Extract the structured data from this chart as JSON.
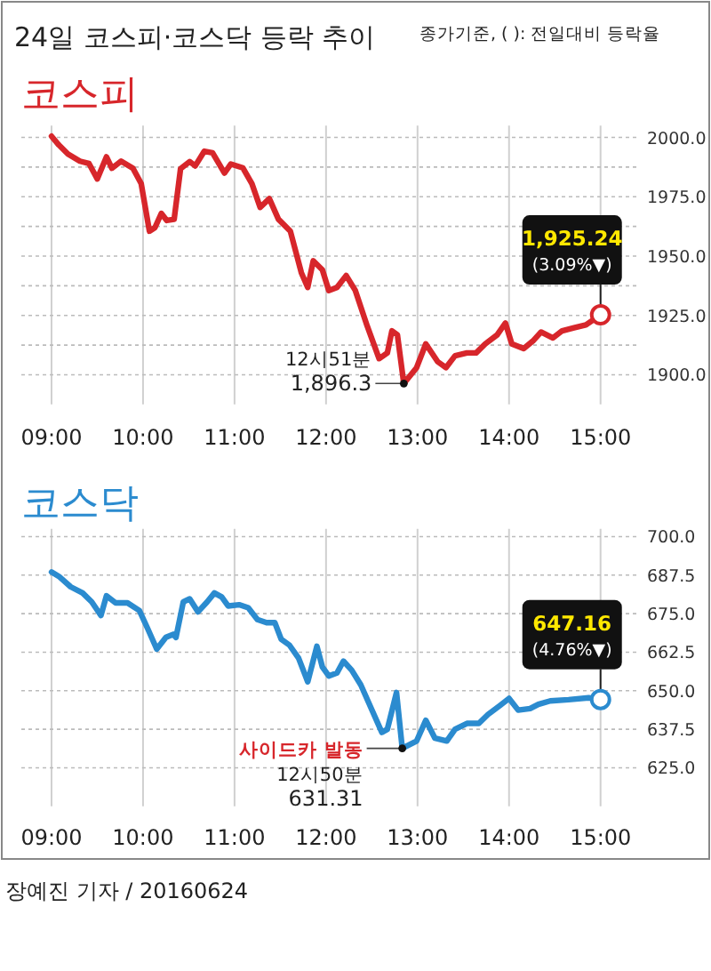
{
  "chart_data": [
    {
      "type": "line",
      "title": "24일 코스피·코스닥 등락 추이",
      "subtitle": "종가기준, ( ): 전일대비 등락율",
      "xlim": [
        8.67,
        15.43
      ],
      "xticks": [
        {
          "value": 9,
          "label": "09:00"
        },
        {
          "value": 10,
          "label": "10:00"
        },
        {
          "value": 11,
          "label": "11:00"
        },
        {
          "value": 12,
          "label": "12:00"
        },
        {
          "value": 13,
          "label": "13:00"
        },
        {
          "value": 14,
          "label": "14:00"
        },
        {
          "value": 15,
          "label": "15:00"
        }
      ],
      "ylim": [
        1887.5,
        2005
      ],
      "yticks": [
        {
          "value": 1900,
          "label": "1900.0"
        },
        {
          "value": 1912.5,
          "label": null
        },
        {
          "value": 1925,
          "label": "1925.0"
        },
        {
          "value": 1937.5,
          "label": null
        },
        {
          "value": 1950,
          "label": "1950.0"
        },
        {
          "value": 1962.5,
          "label": null
        },
        {
          "value": 1975,
          "label": "1975.0"
        },
        {
          "value": 1987.5,
          "label": null
        },
        {
          "value": 2000,
          "label": "2000.0"
        }
      ],
      "grid": true,
      "series": [
        {
          "name": "코스피",
          "color": "#d7262b",
          "x": [
            9.0,
            9.08,
            9.18,
            9.31,
            9.41,
            9.5,
            9.6,
            9.66,
            9.76,
            9.89,
            9.98,
            10.07,
            10.13,
            10.2,
            10.26,
            10.34,
            10.41,
            10.51,
            10.57,
            10.67,
            10.76,
            10.89,
            10.96,
            11.09,
            11.19,
            11.28,
            11.38,
            11.48,
            11.61,
            11.73,
            11.8,
            11.86,
            11.96,
            12.03,
            12.12,
            12.22,
            12.32,
            12.45,
            12.58,
            12.67,
            12.72,
            12.78,
            12.85,
            12.99,
            13.09,
            13.22,
            13.31,
            13.41,
            13.54,
            13.64,
            13.74,
            13.87,
            13.96,
            14.03,
            14.16,
            14.26,
            14.35,
            14.48,
            14.58,
            14.71,
            14.84,
            15.0
          ],
          "values": [
            2000.5,
            1996.8,
            1993,
            1990,
            1989,
            1982.5,
            1991.8,
            1987,
            1990,
            1987,
            1980.5,
            1960.5,
            1962,
            1968,
            1965,
            1965.5,
            1986.8,
            1989.8,
            1988,
            1994.2,
            1993.5,
            1985,
            1988.8,
            1987.2,
            1980.5,
            1970.5,
            1974.2,
            1965.5,
            1960.5,
            1943,
            1936.8,
            1948,
            1944.2,
            1935.5,
            1936.8,
            1941.8,
            1935.5,
            1920.5,
            1906.8,
            1909.2,
            1918.5,
            1916.8,
            1896.3,
            1903,
            1913,
            1905.5,
            1903,
            1908,
            1909.2,
            1909.2,
            1913,
            1916.8,
            1921.8,
            1913,
            1911,
            1914.2,
            1918,
            1915.5,
            1918.5,
            1919.8,
            1921,
            1925.24
          ]
        }
      ],
      "annotations": [
        {
          "text": "12시51분\n1,896.3",
          "x": 12.85,
          "y": 1896.3
        },
        {
          "text": "1,925.24\n(3.09%▼)",
          "x": 15.0,
          "y": 1925.24
        }
      ]
    },
    {
      "type": "line",
      "xlim": [
        8.67,
        15.43
      ],
      "xticks": [
        {
          "value": 9,
          "label": "09:00"
        },
        {
          "value": 10,
          "label": "10:00"
        },
        {
          "value": 11,
          "label": "11:00"
        },
        {
          "value": 12,
          "label": "12:00"
        },
        {
          "value": 13,
          "label": "13:00"
        },
        {
          "value": 14,
          "label": "14:00"
        },
        {
          "value": 15,
          "label": "15:00"
        }
      ],
      "ylim": [
        612.5,
        702.5
      ],
      "yticks": [
        {
          "value": 625,
          "label": "625.0"
        },
        {
          "value": 637.5,
          "label": "637.5"
        },
        {
          "value": 650,
          "label": "650.0"
        },
        {
          "value": 662.5,
          "label": "662.5"
        },
        {
          "value": 675,
          "label": "675.0"
        },
        {
          "value": 687.5,
          "label": "687.5"
        },
        {
          "value": 700,
          "label": "700.0"
        }
      ],
      "grid": true,
      "series": [
        {
          "name": "코스닥",
          "color": "#2b8bcf",
          "x": [
            9.0,
            9.08,
            9.21,
            9.34,
            9.44,
            9.54,
            9.6,
            9.7,
            9.83,
            9.96,
            10.05,
            10.15,
            10.25,
            10.33,
            10.36,
            10.44,
            10.51,
            10.6,
            10.7,
            10.78,
            10.86,
            10.93,
            11.05,
            11.15,
            11.25,
            11.35,
            11.44,
            11.51,
            11.6,
            11.7,
            11.8,
            11.9,
            11.96,
            12.03,
            12.12,
            12.19,
            12.28,
            12.38,
            12.48,
            12.61,
            12.67,
            12.77,
            12.833,
            12.99,
            13.09,
            13.19,
            13.32,
            13.41,
            13.54,
            13.67,
            13.77,
            13.9,
            14.0,
            14.1,
            14.23,
            14.32,
            14.45,
            14.65,
            14.87,
            15.0
          ],
          "values": [
            688.5,
            687.1,
            683.7,
            681.7,
            678.8,
            674.4,
            680.8,
            678.5,
            678.5,
            676,
            670.2,
            663.5,
            667.3,
            668.3,
            667.3,
            678.8,
            679.8,
            675.6,
            678.8,
            681.7,
            680.4,
            677.5,
            677.9,
            676.9,
            673.1,
            672.1,
            672.1,
            666.7,
            664.8,
            660.6,
            652.9,
            664.4,
            657.7,
            654.8,
            655.8,
            659.6,
            656.7,
            651.9,
            645.2,
            636.5,
            637.5,
            649.4,
            631.31,
            633.7,
            640.4,
            634.6,
            633.7,
            637.5,
            639.4,
            639.4,
            642.3,
            645.2,
            647.5,
            643.7,
            644.2,
            645.6,
            646.7,
            647.1,
            647.7,
            647.16
          ]
        }
      ],
      "annotations": [
        {
          "text": "사이드카 발동",
          "x": 12.833,
          "y": 631.31
        },
        {
          "text": "12시50분\n631.31",
          "x": 12.833,
          "y": 631.31
        },
        {
          "text": "647.16\n(4.76%▼)",
          "x": 15.0,
          "y": 647.16
        },
        "장예진 기자 / 20160624"
      ]
    }
  ]
}
